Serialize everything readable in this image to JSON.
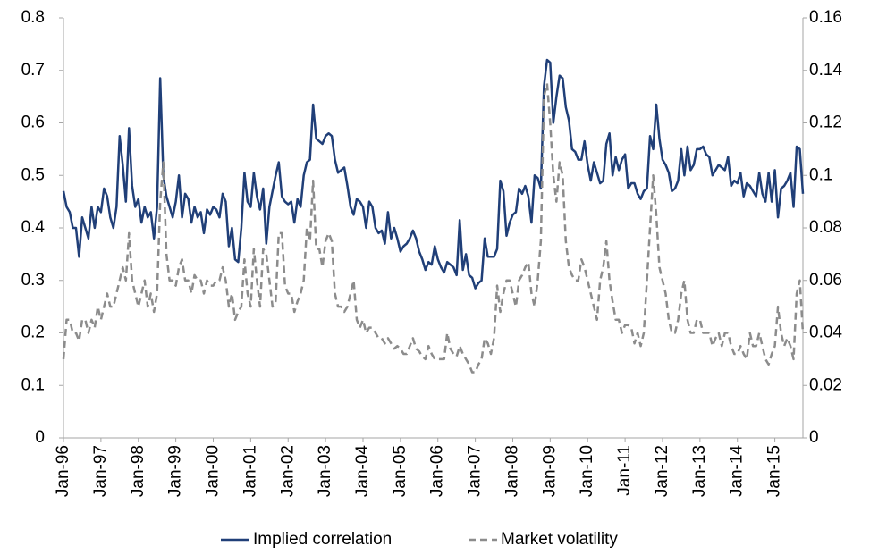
{
  "chart_data": {
    "type": "line",
    "categories": [
      "Jan-96",
      null,
      null,
      null,
      null,
      null,
      null,
      null,
      null,
      null,
      null,
      null,
      "Jan-97",
      null,
      null,
      null,
      null,
      null,
      null,
      null,
      null,
      null,
      null,
      null,
      "Jan-98",
      null,
      null,
      null,
      null,
      null,
      null,
      null,
      null,
      null,
      null,
      null,
      "Jan-99",
      null,
      null,
      null,
      null,
      null,
      null,
      null,
      null,
      null,
      null,
      null,
      "Jan-00",
      null,
      null,
      null,
      null,
      null,
      null,
      null,
      null,
      null,
      null,
      null,
      "Jan-01",
      null,
      null,
      null,
      null,
      null,
      null,
      null,
      null,
      null,
      null,
      null,
      "Jan-02",
      null,
      null,
      null,
      null,
      null,
      null,
      null,
      null,
      null,
      null,
      null,
      "Jan-03",
      null,
      null,
      null,
      null,
      null,
      null,
      null,
      null,
      null,
      null,
      null,
      "Jan-04",
      null,
      null,
      null,
      null,
      null,
      null,
      null,
      null,
      null,
      null,
      null,
      "Jan-05",
      null,
      null,
      null,
      null,
      null,
      null,
      null,
      null,
      null,
      null,
      null,
      "Jan-06",
      null,
      null,
      null,
      null,
      null,
      null,
      null,
      null,
      null,
      null,
      null,
      "Jan-07",
      null,
      null,
      null,
      null,
      null,
      null,
      null,
      null,
      null,
      null,
      null,
      "Jan-08",
      null,
      null,
      null,
      null,
      null,
      null,
      null,
      null,
      null,
      null,
      null,
      "Jan-09",
      null,
      null,
      null,
      null,
      null,
      null,
      null,
      null,
      null,
      null,
      null,
      "Jan-10",
      null,
      null,
      null,
      null,
      null,
      null,
      null,
      null,
      null,
      null,
      null,
      "Jan-11",
      null,
      null,
      null,
      null,
      null,
      null,
      null,
      null,
      null,
      null,
      null,
      "Jan-12",
      null,
      null,
      null,
      null,
      null,
      null,
      null,
      null,
      null,
      null,
      null,
      "Jan-13",
      null,
      null,
      null,
      null,
      null,
      null,
      null,
      null,
      null,
      null,
      null,
      "Jan-14",
      null,
      null,
      null,
      null,
      null,
      null,
      null,
      null,
      null,
      null,
      null,
      "Jan-15",
      null,
      null,
      null,
      null,
      null,
      null,
      null,
      null,
      null
    ],
    "series": [
      {
        "name": "Implied correlation",
        "color": "#203f78",
        "axis": "y",
        "values": [
          0.47,
          0.44,
          0.43,
          0.4,
          0.4,
          0.345,
          0.42,
          0.4,
          0.38,
          0.44,
          0.4,
          0.44,
          0.43,
          0.475,
          0.46,
          0.42,
          0.4,
          0.44,
          0.575,
          0.52,
          0.45,
          0.59,
          0.48,
          0.44,
          0.455,
          0.41,
          0.44,
          0.42,
          0.43,
          0.38,
          0.44,
          0.685,
          0.5,
          0.46,
          0.44,
          0.42,
          0.45,
          0.5,
          0.42,
          0.465,
          0.455,
          0.41,
          0.44,
          0.42,
          0.43,
          0.39,
          0.435,
          0.425,
          0.44,
          0.435,
          0.42,
          0.465,
          0.45,
          0.365,
          0.4,
          0.34,
          0.335,
          0.4,
          0.505,
          0.45,
          0.44,
          0.505,
          0.46,
          0.435,
          0.475,
          0.37,
          0.44,
          0.47,
          0.5,
          0.525,
          0.46,
          0.45,
          0.445,
          0.45,
          0.41,
          0.455,
          0.44,
          0.5,
          0.525,
          0.53,
          0.635,
          0.57,
          0.565,
          0.56,
          0.575,
          0.58,
          0.575,
          0.53,
          0.505,
          0.51,
          0.515,
          0.48,
          0.44,
          0.425,
          0.455,
          0.45,
          0.44,
          0.4,
          0.45,
          0.44,
          0.4,
          0.39,
          0.395,
          0.37,
          0.43,
          0.38,
          0.4,
          0.38,
          0.355,
          0.365,
          0.37,
          0.38,
          0.395,
          0.38,
          0.355,
          0.34,
          0.32,
          0.335,
          0.33,
          0.365,
          0.34,
          0.325,
          0.315,
          0.335,
          0.33,
          0.325,
          0.31,
          0.415,
          0.32,
          0.35,
          0.31,
          0.305,
          0.285,
          0.295,
          0.3,
          0.38,
          0.345,
          0.345,
          0.345,
          0.36,
          0.49,
          0.47,
          0.385,
          0.41,
          0.425,
          0.43,
          0.475,
          0.465,
          0.48,
          0.46,
          0.41,
          0.5,
          0.495,
          0.475,
          0.67,
          0.72,
          0.715,
          0.6,
          0.65,
          0.69,
          0.685,
          0.63,
          0.605,
          0.55,
          0.545,
          0.53,
          0.53,
          0.565,
          0.52,
          0.49,
          0.525,
          0.505,
          0.485,
          0.49,
          0.56,
          0.58,
          0.5,
          0.535,
          0.51,
          0.53,
          0.54,
          0.475,
          0.485,
          0.485,
          0.465,
          0.455,
          0.47,
          0.475,
          0.575,
          0.55,
          0.635,
          0.57,
          0.53,
          0.52,
          0.505,
          0.47,
          0.475,
          0.49,
          0.55,
          0.5,
          0.555,
          0.51,
          0.52,
          0.55,
          0.55,
          0.555,
          0.54,
          0.535,
          0.5,
          0.51,
          0.52,
          0.515,
          0.51,
          0.535,
          0.48,
          0.49,
          0.485,
          0.505,
          0.46,
          0.485,
          0.48,
          0.47,
          0.46,
          0.505,
          0.465,
          0.45,
          0.505,
          0.45,
          0.51,
          0.42,
          0.475,
          0.48,
          0.49,
          0.505,
          0.44,
          0.555,
          0.55,
          0.465
        ]
      },
      {
        "name": "Market volatility",
        "color": "#8c8c8c",
        "axis": "y2",
        "dashed": true,
        "values": [
          0.03,
          0.045,
          0.045,
          0.04,
          0.04,
          0.037,
          0.045,
          0.045,
          0.04,
          0.045,
          0.042,
          0.05,
          0.045,
          0.05,
          0.055,
          0.05,
          0.05,
          0.055,
          0.06,
          0.065,
          0.06,
          0.078,
          0.06,
          0.055,
          0.05,
          0.055,
          0.06,
          0.05,
          0.055,
          0.048,
          0.055,
          0.09,
          0.105,
          0.07,
          0.06,
          0.06,
          0.058,
          0.065,
          0.068,
          0.06,
          0.06,
          0.055,
          0.062,
          0.06,
          0.06,
          0.055,
          0.06,
          0.058,
          0.058,
          0.06,
          0.06,
          0.065,
          0.06,
          0.05,
          0.055,
          0.045,
          0.048,
          0.05,
          0.068,
          0.055,
          0.05,
          0.072,
          0.06,
          0.05,
          0.072,
          0.07,
          0.06,
          0.05,
          0.052,
          0.078,
          0.078,
          0.058,
          0.055,
          0.055,
          0.048,
          0.052,
          0.055,
          0.06,
          0.08,
          0.075,
          0.098,
          0.072,
          0.072,
          0.065,
          0.075,
          0.078,
          0.075,
          0.055,
          0.05,
          0.05,
          0.048,
          0.05,
          0.055,
          0.06,
          0.045,
          0.042,
          0.045,
          0.04,
          0.042,
          0.042,
          0.04,
          0.038,
          0.038,
          0.036,
          0.038,
          0.036,
          0.034,
          0.035,
          0.034,
          0.032,
          0.032,
          0.035,
          0.038,
          0.034,
          0.033,
          0.031,
          0.03,
          0.035,
          0.032,
          0.03,
          0.03,
          0.03,
          0.03,
          0.04,
          0.034,
          0.032,
          0.031,
          0.035,
          0.032,
          0.03,
          0.028,
          0.025,
          0.025,
          0.028,
          0.03,
          0.038,
          0.036,
          0.032,
          0.038,
          0.058,
          0.048,
          0.055,
          0.06,
          0.06,
          0.055,
          0.05,
          0.06,
          0.062,
          0.065,
          0.067,
          0.055,
          0.05,
          0.06,
          0.075,
          0.13,
          0.135,
          0.12,
          0.1,
          0.09,
          0.105,
          0.1,
          0.075,
          0.065,
          0.062,
          0.06,
          0.06,
          0.068,
          0.065,
          0.06,
          0.055,
          0.05,
          0.045,
          0.06,
          0.065,
          0.075,
          0.06,
          0.052,
          0.045,
          0.045,
          0.04,
          0.043,
          0.043,
          0.042,
          0.036,
          0.04,
          0.035,
          0.04,
          0.06,
          0.08,
          0.1,
          0.085,
          0.065,
          0.06,
          0.055,
          0.045,
          0.04,
          0.04,
          0.045,
          0.055,
          0.06,
          0.045,
          0.04,
          0.04,
          0.045,
          0.045,
          0.04,
          0.04,
          0.04,
          0.035,
          0.038,
          0.04,
          0.035,
          0.04,
          0.04,
          0.035,
          0.032,
          0.032,
          0.035,
          0.032,
          0.03,
          0.04,
          0.035,
          0.035,
          0.04,
          0.035,
          0.03,
          0.028,
          0.032,
          0.035,
          0.05,
          0.04,
          0.035,
          0.038,
          0.035,
          0.03,
          0.055,
          0.06,
          0.04
        ]
      }
    ],
    "ylim": [
      0,
      0.8
    ],
    "yticks": [
      0,
      0.1,
      0.2,
      0.3,
      0.4,
      0.5,
      0.6,
      0.7,
      0.8
    ],
    "y2lim": [
      0,
      0.16
    ],
    "y2ticks": [
      0,
      0.02,
      0.04,
      0.06,
      0.08,
      0.1,
      0.12,
      0.14,
      0.16
    ],
    "legend": "bottom"
  }
}
